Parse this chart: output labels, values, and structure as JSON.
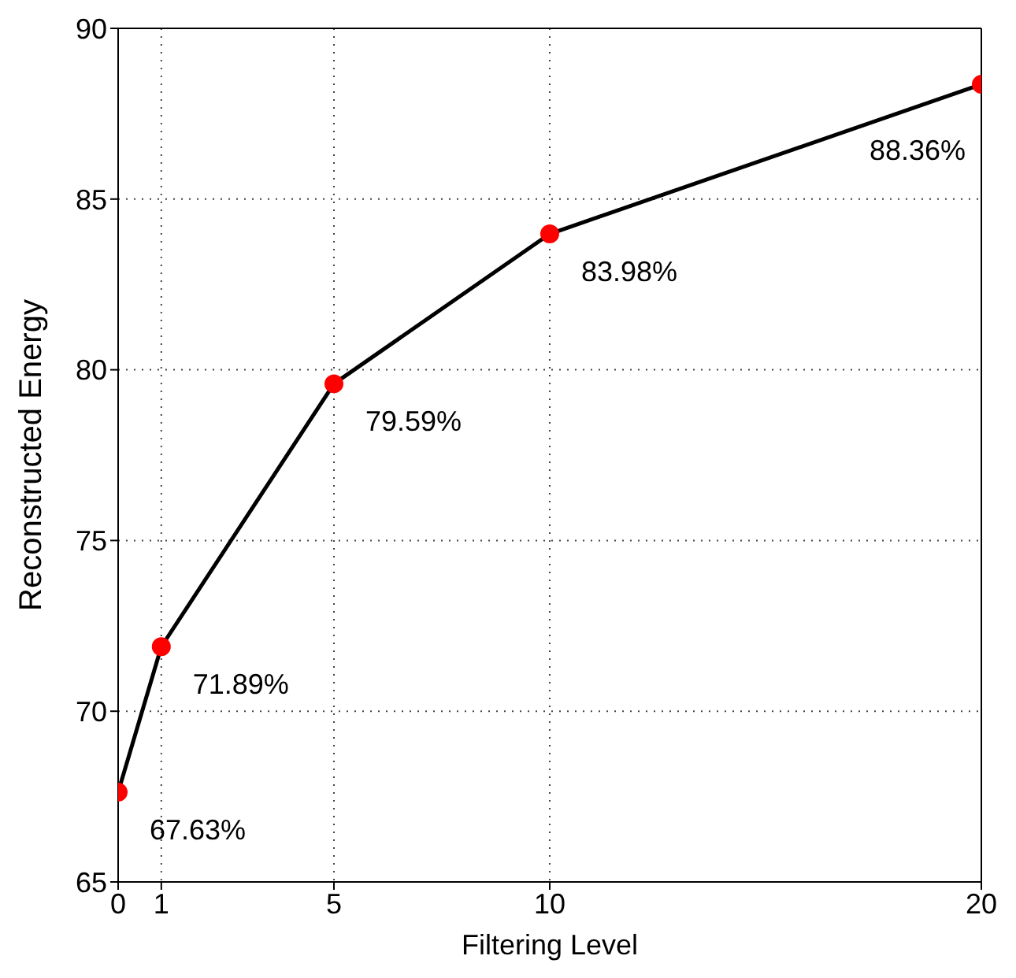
{
  "chart_data": {
    "type": "line",
    "xlabel": "Filtering Level",
    "ylabel": "Reconstructed Energy",
    "x": [
      0,
      1,
      5,
      10,
      20
    ],
    "series": [
      {
        "color": "#000000",
        "values": [
          67.63,
          71.89,
          79.59,
          83.98,
          88.36
        ],
        "value_labels": [
          "67.63%",
          "71.89%",
          "79.59%",
          "83.98%",
          "88.36%"
        ],
        "colors": [
          "#ff0000",
          "#ff0000",
          "#ff0000",
          "#ff0000",
          "#ff0000"
        ]
      }
    ],
    "xlim": [
      0,
      20
    ],
    "xticks": [
      0,
      1,
      5,
      10,
      20
    ],
    "ylim": [
      65,
      90
    ],
    "yticks": [
      65,
      70,
      75,
      80,
      85,
      90
    ],
    "grid": true,
    "marker": "circle",
    "line_style": "solid"
  }
}
